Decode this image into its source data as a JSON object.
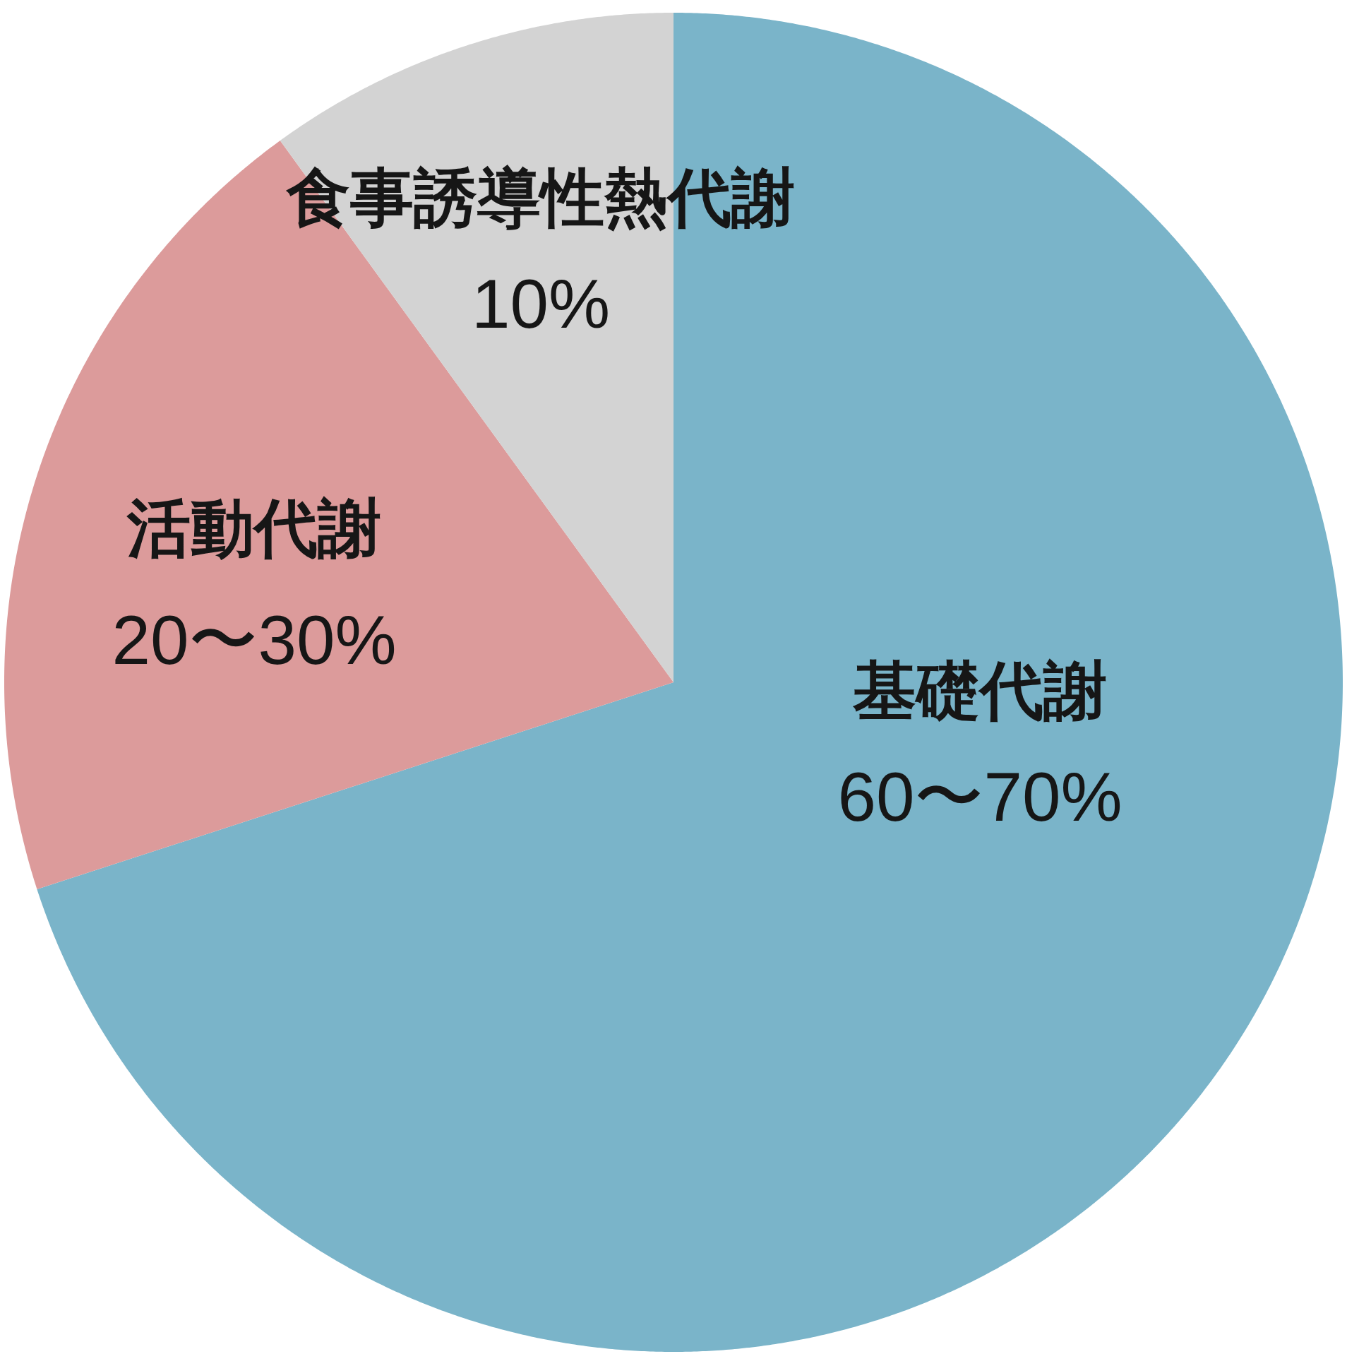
{
  "chart_data": {
    "type": "pie",
    "categories": [
      "基礎代謝",
      "活動代謝",
      "食事誘導性熱代謝"
    ],
    "values": [
      70,
      20,
      10
    ],
    "colors": [
      "#7ab4c9",
      "#dc9b9b",
      "#d3d3d3"
    ],
    "value_labels": [
      "60〜70%",
      "20〜30%",
      "10%"
    ]
  }
}
